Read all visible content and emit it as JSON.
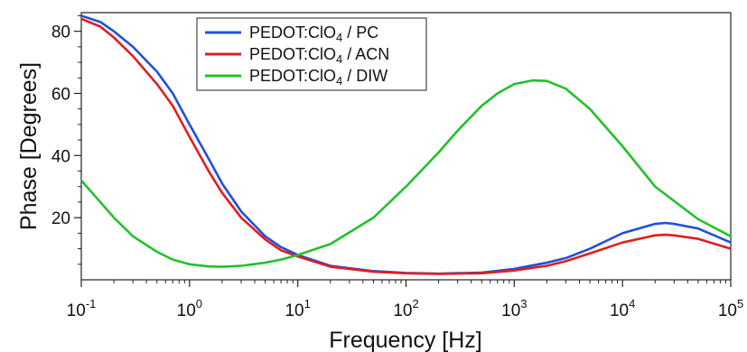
{
  "chart_data": {
    "type": "line",
    "xlabel": "Frequency [Hz]",
    "ylabel": "Phase [Degrees]",
    "x_scale": "log",
    "xlim": [
      0.1,
      100000
    ],
    "ylim": [
      0,
      86
    ],
    "x_ticks": [
      0.1,
      1,
      10,
      100,
      1000,
      10000,
      100000
    ],
    "x_tick_labels": [
      {
        "base": "10",
        "exp": "-1"
      },
      {
        "base": "10",
        "exp": "0"
      },
      {
        "base": "10",
        "exp": "1"
      },
      {
        "base": "10",
        "exp": "2"
      },
      {
        "base": "10",
        "exp": "3"
      },
      {
        "base": "10",
        "exp": "4"
      },
      {
        "base": "10",
        "exp": "5"
      }
    ],
    "y_ticks": [
      20,
      40,
      60,
      80
    ],
    "y_tick_labels": [
      "20",
      "40",
      "60",
      "80"
    ],
    "grid": false,
    "legend_position": "top-center",
    "series": [
      {
        "name_main": "PEDOT:ClO",
        "name_sub": "4",
        "name_tail": " / PC",
        "color": "#1f4fe0",
        "x": [
          0.1,
          0.15,
          0.2,
          0.3,
          0.5,
          0.7,
          1,
          1.5,
          2,
          3,
          5,
          7,
          10,
          20,
          50,
          100,
          200,
          500,
          1000,
          2000,
          3000,
          5000,
          10000,
          20000,
          25000,
          30000,
          50000,
          100000
        ],
        "y": [
          85,
          83,
          80,
          75,
          67,
          60,
          50,
          39,
          31,
          22,
          14,
          10.5,
          8,
          4.5,
          2.8,
          2.2,
          2,
          2.3,
          3.5,
          5.5,
          7,
          10,
          15,
          18,
          18.3,
          18,
          16.5,
          12
        ]
      },
      {
        "name_main": "PEDOT:ClO",
        "name_sub": "4",
        "name_tail": " / ACN",
        "color": "#e01e1e",
        "x": [
          0.1,
          0.15,
          0.2,
          0.3,
          0.5,
          0.7,
          1,
          1.5,
          2,
          3,
          5,
          7,
          10,
          20,
          50,
          100,
          200,
          500,
          1000,
          2000,
          3000,
          5000,
          10000,
          20000,
          25000,
          30000,
          50000,
          100000
        ],
        "y": [
          84,
          81.5,
          78,
          72,
          63,
          56,
          46,
          35,
          28,
          20,
          13,
          9.5,
          7.5,
          4.2,
          2.6,
          2.1,
          1.9,
          2.1,
          3,
          4.5,
          6,
          8.5,
          12,
          14.3,
          14.5,
          14.3,
          13.2,
          10
        ]
      },
      {
        "name_main": "PEDOT:ClO",
        "name_sub": "4",
        "name_tail": " / DIW",
        "color": "#22c12a",
        "x": [
          0.1,
          0.15,
          0.2,
          0.3,
          0.5,
          0.7,
          1,
          1.5,
          2,
          3,
          5,
          7,
          10,
          20,
          50,
          100,
          200,
          300,
          500,
          700,
          1000,
          1500,
          2000,
          3000,
          5000,
          10000,
          20000,
          50000,
          100000
        ],
        "y": [
          32,
          25,
          20,
          14,
          9,
          6.5,
          5,
          4.3,
          4.2,
          4.5,
          5.5,
          6.5,
          8,
          11.5,
          20,
          30,
          41,
          48,
          56,
          60,
          63,
          64.2,
          64,
          61.5,
          55,
          43,
          30,
          19.5,
          14
        ]
      }
    ]
  }
}
